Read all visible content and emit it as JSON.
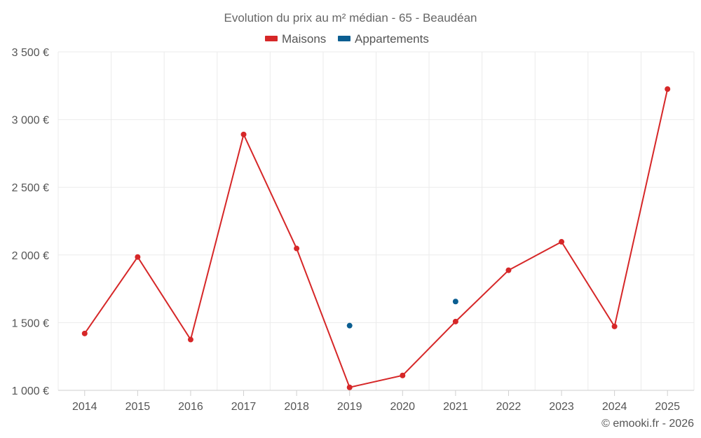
{
  "chart_data": {
    "type": "line",
    "title": "Evolution du prix au m² médian - 65 - Beaudéan",
    "categories": [
      "2014",
      "2015",
      "2016",
      "2017",
      "2018",
      "2019",
      "2020",
      "2021",
      "2022",
      "2023",
      "2024",
      "2025"
    ],
    "ylim": [
      1000,
      3500
    ],
    "yticks": [
      1000,
      1500,
      2000,
      2500,
      3000,
      3500
    ],
    "ytick_labels": [
      "1 000 €",
      "1 500 €",
      "2 000 €",
      "2 500 €",
      "3 000 €",
      "3 500 €"
    ],
    "grid": true,
    "legend_position": "top-center",
    "series": [
      {
        "name": "Maisons",
        "color": "#d62728",
        "values": [
          1420,
          1985,
          1375,
          2890,
          2048,
          1022,
          1110,
          1508,
          1887,
          2097,
          1472,
          3225
        ]
      },
      {
        "name": "Appartements",
        "color": "#0b5e91",
        "values": [
          null,
          null,
          null,
          null,
          null,
          1478,
          null,
          1656,
          null,
          null,
          null,
          null
        ]
      }
    ],
    "credit": "© emooki.fr - 2026"
  }
}
